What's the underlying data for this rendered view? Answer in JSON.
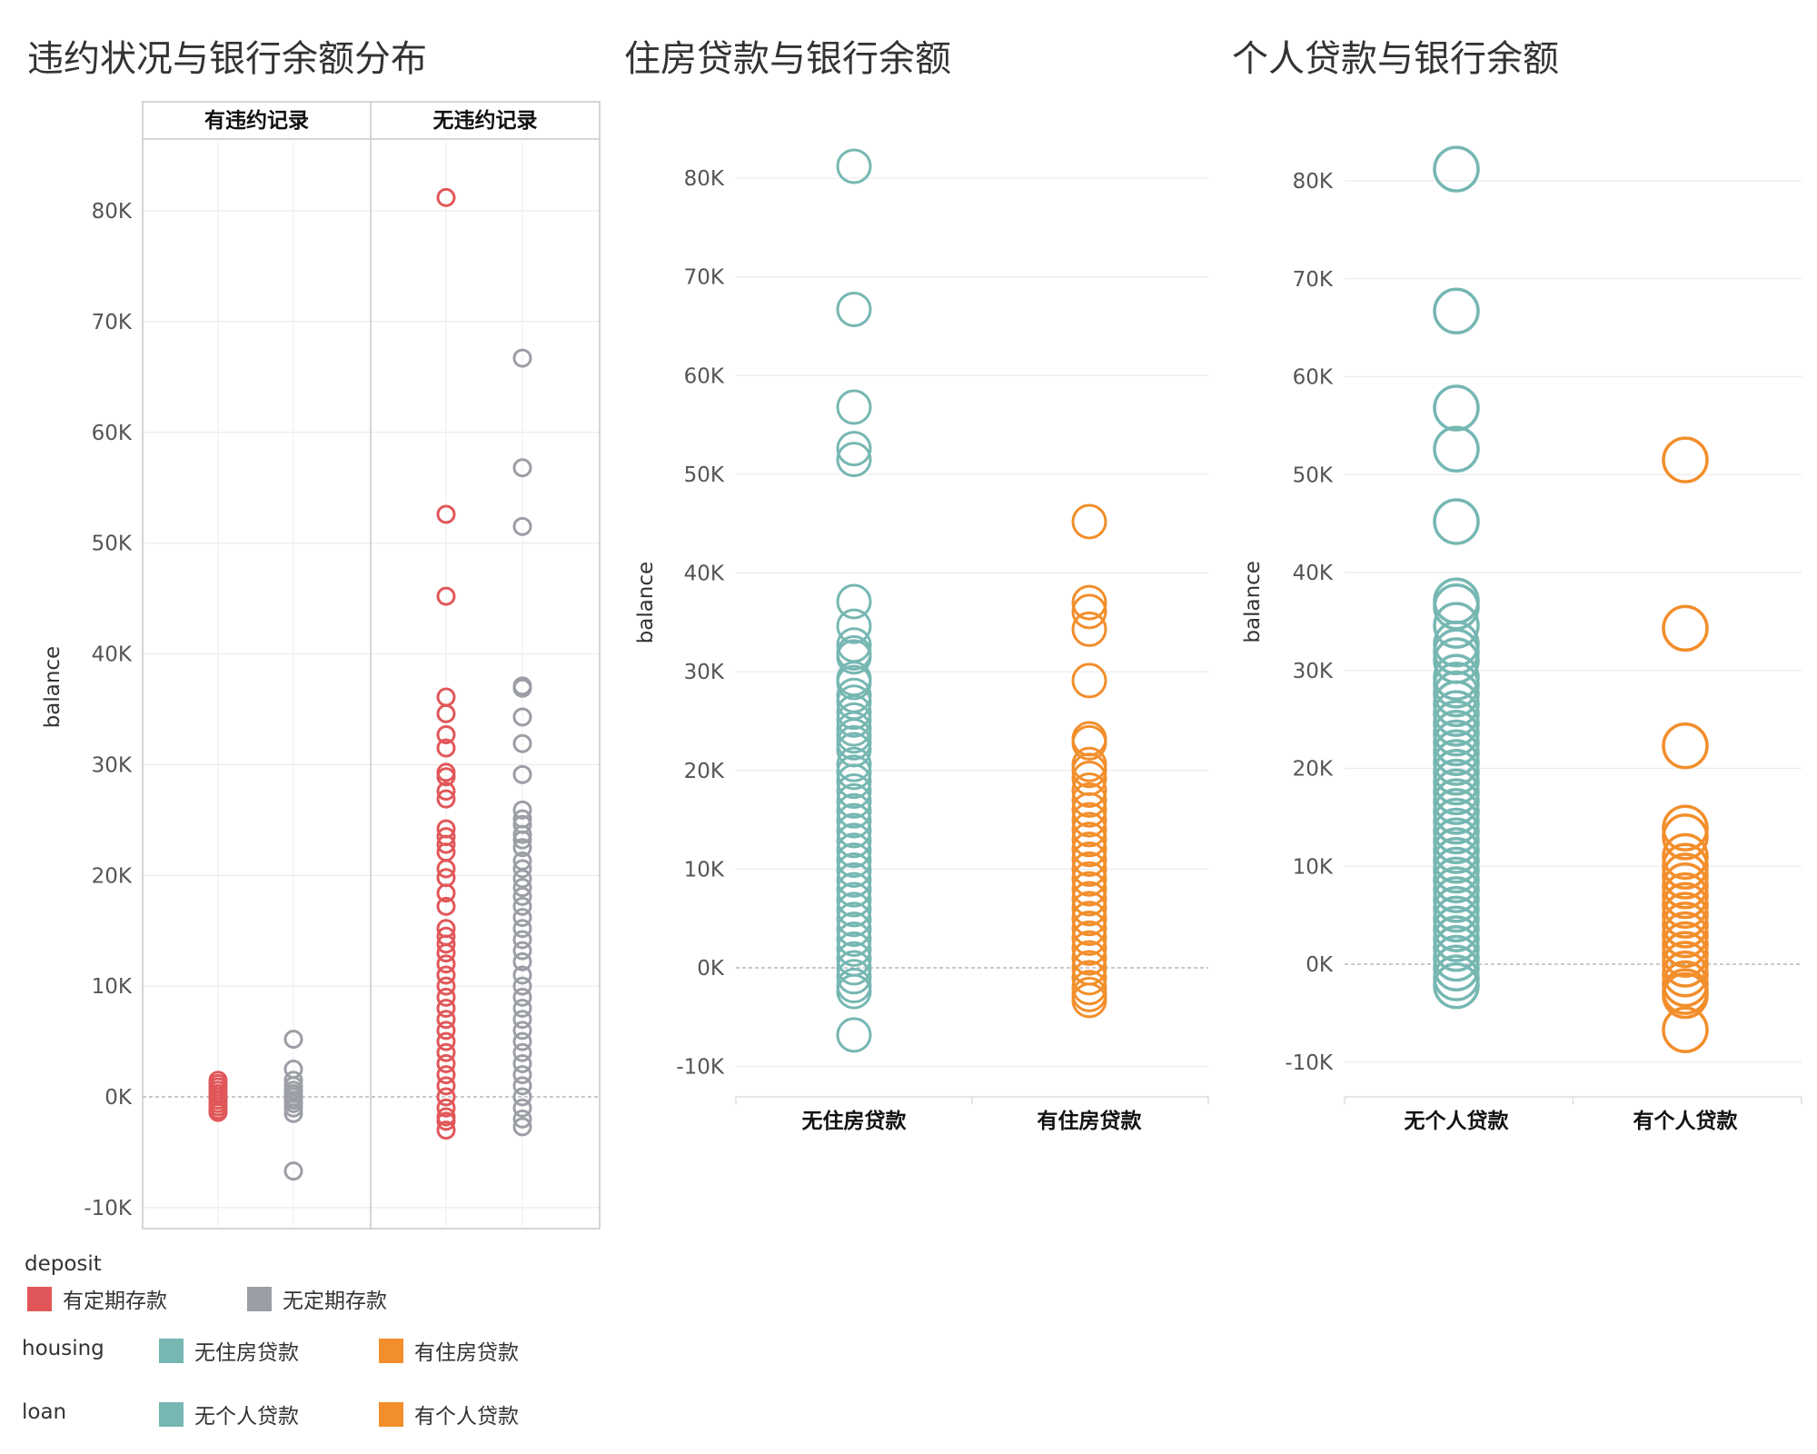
{
  "colors": {
    "deposit_yes": "#e15759",
    "deposit_no": "#9b9ea4",
    "housing_no": "#76b7b2",
    "housing_yes": "#f28e2b",
    "loan_no": "#76b7b2",
    "loan_yes": "#f28e2b"
  },
  "chart_data": [
    {
      "type": "scatter",
      "title": "违约状况与银行余额分布",
      "ylabel": "balance",
      "ylim": [
        -12000,
        86000
      ],
      "yticks": [
        "-10K",
        "0K",
        "10K",
        "20K",
        "30K",
        "40K",
        "50K",
        "60K",
        "70K",
        "80K"
      ],
      "panels": [
        "有违约记录",
        "无违约记录"
      ],
      "series": [
        {
          "name": "有定期存款",
          "color_key": "deposit_yes",
          "panel": 0,
          "points": [
            1500,
            1200,
            900,
            600,
            300,
            0,
            -300,
            -600,
            -900,
            -1200,
            -1400
          ]
        },
        {
          "name": "无定期存款",
          "color_key": "deposit_no",
          "panel": 0,
          "points": [
            5200,
            2500,
            1500,
            1000,
            600,
            300,
            0,
            -300,
            -600,
            -1000,
            -1500,
            -6700
          ]
        },
        {
          "name": "有定期存款",
          "color_key": "deposit_yes",
          "panel": 1,
          "points": [
            81200,
            52600,
            45200,
            36100,
            34600,
            32700,
            31500,
            29300,
            28900,
            27600,
            26900,
            24200,
            23500,
            22800,
            22100,
            20600,
            19800,
            18400,
            17200,
            15200,
            14500,
            13800,
            13000,
            12000,
            11000,
            10000,
            9000,
            8000,
            7000,
            6000,
            5000,
            4000,
            3000,
            2000,
            1000,
            0,
            -1000,
            -1800,
            -2200,
            -3000
          ]
        },
        {
          "name": "无定期存款",
          "color_key": "deposit_no",
          "panel": 1,
          "points": [
            66700,
            56800,
            51500,
            37100,
            36900,
            34300,
            31900,
            29100,
            25900,
            25100,
            24600,
            23700,
            23200,
            22500,
            21300,
            20600,
            19700,
            18900,
            18100,
            17200,
            16200,
            15200,
            14200,
            13200,
            12200,
            11000,
            10000,
            9000,
            8000,
            7000,
            6000,
            5000,
            4000,
            3000,
            2000,
            1000,
            0,
            -1000,
            -2000,
            -2700
          ]
        }
      ]
    },
    {
      "type": "scatter",
      "title": "住房贷款与银行余额",
      "ylabel": "balance",
      "ylim": [
        -13000,
        87000
      ],
      "yticks": [
        "-10K",
        "0K",
        "10K",
        "20K",
        "30K",
        "40K",
        "50K",
        "60K",
        "70K",
        "80K"
      ],
      "categories": [
        "无住房贷款",
        "有住房贷款"
      ],
      "series": [
        {
          "name": "无住房贷款",
          "color_key": "housing_no",
          "points": [
            81200,
            66700,
            56800,
            52600,
            51500,
            37100,
            34600,
            32700,
            31900,
            31500,
            29300,
            28900,
            27600,
            26900,
            25900,
            25100,
            24200,
            23500,
            22800,
            22100,
            20600,
            19800,
            18900,
            17900,
            16900,
            15900,
            14900,
            13900,
            12900,
            11900,
            10900,
            9900,
            8900,
            7900,
            6900,
            5900,
            4900,
            3900,
            2900,
            1900,
            900,
            0,
            -900,
            -1800,
            -2400,
            -6800
          ]
        },
        {
          "name": "有住房贷款",
          "color_key": "housing_yes",
          "points": [
            45200,
            37000,
            36100,
            34300,
            29100,
            23200,
            22800,
            20600,
            20000,
            19200,
            18000,
            17000,
            16000,
            15000,
            14000,
            13000,
            12000,
            11000,
            10000,
            9000,
            8000,
            7000,
            6000,
            5000,
            4000,
            3000,
            2000,
            1000,
            0,
            -1000,
            -2000,
            -2700,
            -3300
          ]
        }
      ]
    },
    {
      "type": "scatter",
      "title": "个人贷款与银行余额",
      "ylabel": "balance",
      "ylim": [
        -13000,
        87000
      ],
      "yticks": [
        "-10K",
        "0K",
        "10K",
        "20K",
        "30K",
        "40K",
        "50K",
        "60K",
        "70K",
        "80K"
      ],
      "categories": [
        "无个人贷款",
        "有个人贷款"
      ],
      "series": [
        {
          "name": "无个人贷款",
          "color_key": "loan_no",
          "points": [
            81200,
            66700,
            56800,
            52600,
            45200,
            37100,
            36500,
            34600,
            32700,
            31900,
            31000,
            29300,
            28500,
            27600,
            26600,
            25600,
            24600,
            23600,
            22600,
            21600,
            20600,
            19600,
            18600,
            17600,
            16600,
            15600,
            14600,
            13600,
            12600,
            11600,
            10600,
            9600,
            8600,
            7600,
            6600,
            5600,
            4600,
            3600,
            2600,
            1600,
            600,
            -400,
            -1400,
            -2200
          ]
        },
        {
          "name": "有个人贷款",
          "color_key": "loan_yes",
          "points": [
            51500,
            34300,
            22300,
            13900,
            13000,
            11000,
            10000,
            9000,
            8000,
            7000,
            6000,
            5000,
            4000,
            3000,
            2000,
            1000,
            0,
            -1000,
            -2000,
            -2800,
            -3200,
            -6700
          ]
        }
      ]
    }
  ],
  "legend": {
    "deposit": {
      "title": "deposit",
      "items": [
        {
          "label": "有定期存款",
          "color_key": "deposit_yes"
        },
        {
          "label": "无定期存款",
          "color_key": "deposit_no"
        }
      ]
    },
    "housing": {
      "title": "housing",
      "items": [
        {
          "label": "无住房贷款",
          "color_key": "housing_no"
        },
        {
          "label": "有住房贷款",
          "color_key": "housing_yes"
        }
      ]
    },
    "loan": {
      "title": "loan",
      "items": [
        {
          "label": "无个人贷款",
          "color_key": "loan_no"
        },
        {
          "label": "有个人贷款",
          "color_key": "loan_yes"
        }
      ]
    }
  }
}
